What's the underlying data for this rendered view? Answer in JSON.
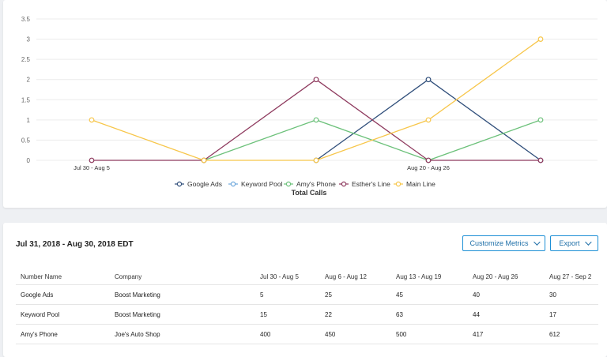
{
  "chart_data": {
    "type": "line",
    "title": "Total Calls",
    "x": [
      "Jul 30 - Aug 5",
      "Aug 6 - Aug 12",
      "Aug 13 - Aug 19",
      "Aug 20 - Aug 26",
      "Aug 27 - Sep 2"
    ],
    "x_tick_labels_shown": [
      "Jul 30 - Aug 5",
      "Aug 20 - Aug 26"
    ],
    "y_ticks": [
      "0",
      "0.5",
      "1",
      "1.5",
      "2",
      "2.5",
      "3",
      "3.5"
    ],
    "ylim": [
      0,
      3.5
    ],
    "grid": true,
    "legend": "bottom",
    "series": [
      {
        "name": "Google Ads",
        "color": "#2f4e7a",
        "values": [
          null,
          null,
          0,
          2,
          0
        ]
      },
      {
        "name": "Keyword Pool",
        "color": "#6fa8dc",
        "values": [
          null,
          null,
          null,
          null,
          null
        ]
      },
      {
        "name": "Amy's Phone",
        "color": "#6cc17a",
        "values": [
          null,
          0,
          1,
          0,
          1
        ]
      },
      {
        "name": "Esther's Line",
        "color": "#8e3a5e",
        "values": [
          0,
          0,
          2,
          0,
          0
        ]
      },
      {
        "name": "Main Line",
        "color": "#f7c64a",
        "values": [
          1,
          0,
          0,
          1,
          3
        ]
      }
    ]
  },
  "report": {
    "date_range": "Jul 31, 2018 - Aug 30, 2018 EDT",
    "customize_label": "Customize Metrics",
    "export_label": "Export"
  },
  "table": {
    "headers": [
      "Number Name",
      "Company",
      "Jul 30 - Aug 5",
      "Aug 6 - Aug 12",
      "Aug 13 - Aug 19",
      "Aug 20 - Aug 26",
      "Aug 27 - Sep 2"
    ],
    "rows": [
      [
        "Google Ads",
        "Boost Marketing",
        "5",
        "25",
        "45",
        "40",
        "30"
      ],
      [
        "Keyword Pool",
        "Boost Marketing",
        "15",
        "22",
        "63",
        "44",
        "17"
      ],
      [
        "Amy's Phone",
        "Joe's Auto Shop",
        "400",
        "450",
        "500",
        "417",
        "612"
      ]
    ]
  }
}
